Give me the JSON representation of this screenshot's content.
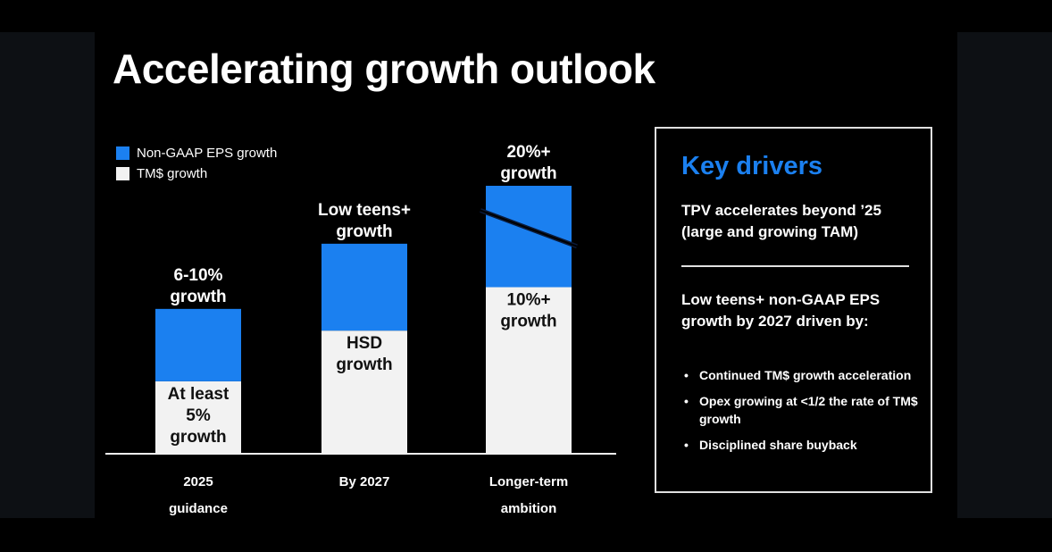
{
  "title": "Accelerating growth outlook",
  "legend": [
    {
      "label": "Non-GAAP EPS growth",
      "color": "#1b80f0"
    },
    {
      "label": "TM$ growth",
      "color": "#f2f2f2"
    }
  ],
  "chart_data": {
    "type": "bar",
    "stacked": true,
    "categories": [
      [
        "2025",
        "guidance"
      ],
      [
        "By 2027"
      ],
      [
        "Longer-term",
        "ambition"
      ]
    ],
    "series": [
      {
        "name": "TM$ growth",
        "color": "#f2f2f2",
        "values": [
          1.0,
          1.7,
          2.3
        ]
      },
      {
        "name": "Non-GAAP EPS growth",
        "color": "#1b80f0",
        "values": [
          1.0,
          1.2,
          1.4
        ]
      }
    ],
    "labels_top": [
      [
        "6-10%",
        "growth"
      ],
      [
        "Low teens+",
        "growth"
      ],
      [
        "20%+",
        "growth"
      ]
    ],
    "labels_inner": [
      [
        "At least",
        "5%",
        "growth"
      ],
      [
        "HSD",
        "growth"
      ],
      [
        "10%+",
        "growth"
      ]
    ],
    "ylim": [
      0,
      3.7
    ],
    "annotation": "diagonal line across the longer-term EPS bar",
    "xlabel": "",
    "ylabel": ""
  },
  "key_drivers": {
    "title": "Key drivers",
    "point1": "TPV accelerates beyond ’25 (large and growing TAM)",
    "point2": "Low teens+ non-GAAP EPS growth by 2027 driven by:",
    "bullets": [
      "Continued TM$ growth acceleration",
      "Opex growing at <1/2 the rate of TM$ growth",
      "Disciplined share buyback"
    ]
  }
}
